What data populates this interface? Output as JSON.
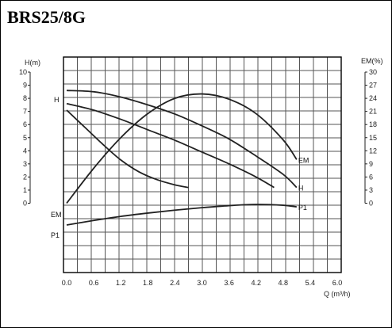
{
  "page": {
    "title": "BRS25/8G"
  },
  "chart_data": {
    "type": "line",
    "xlabel": "Q (m³/h)",
    "x_ticks": [
      "0.0",
      "0.6",
      "1.2",
      "1.8",
      "2.4",
      "3.0",
      "3.6",
      "4.2",
      "4.8",
      "5.4",
      "6.0"
    ],
    "xlim": [
      0,
      6.0
    ],
    "left_axis": {
      "label": "H(m)",
      "ticks": [
        "0",
        "1",
        "2",
        "3",
        "4",
        "5",
        "6",
        "7",
        "8",
        "9",
        "10"
      ],
      "ylim": [
        0,
        10
      ]
    },
    "right_axis": {
      "label": "EM(%)",
      "ticks": [
        "0",
        "3",
        "6",
        "9",
        "12",
        "15",
        "18",
        "21",
        "24",
        "27",
        "30"
      ],
      "ylim": [
        0,
        30
      ]
    },
    "lower_labels": {
      "em": "EM",
      "p1": "P1"
    },
    "grid": true,
    "series": [
      {
        "name": "H",
        "axis": "left",
        "label_pos": "end",
        "x": [
          0,
          0.6,
          1.2,
          1.8,
          2.4,
          3.0,
          3.6,
          4.2,
          4.8,
          5.1
        ],
        "y": [
          8.6,
          8.5,
          8.1,
          7.5,
          6.8,
          5.9,
          4.9,
          3.6,
          2.2,
          1.2
        ]
      },
      {
        "name": "H",
        "axis": "left",
        "label_pos": "start",
        "x": [
          0,
          0.6,
          1.2,
          1.8,
          2.4,
          3.0,
          3.6,
          4.2,
          4.6
        ],
        "y": [
          7.6,
          7.1,
          6.4,
          5.6,
          4.8,
          3.9,
          3.0,
          2.0,
          1.2
        ]
      },
      {
        "name": "",
        "axis": "left",
        "x": [
          0,
          0.4,
          0.8,
          1.2,
          1.6,
          2.0,
          2.4,
          2.7
        ],
        "y": [
          7.1,
          5.8,
          4.5,
          3.3,
          2.4,
          1.8,
          1.4,
          1.2
        ]
      },
      {
        "name": "EM",
        "axis": "right",
        "label_pos": "end",
        "x": [
          0,
          0.6,
          1.2,
          1.8,
          2.4,
          3.0,
          3.6,
          4.2,
          4.8,
          5.1
        ],
        "y": [
          0,
          8.0,
          15.0,
          20.5,
          24.0,
          25.0,
          23.8,
          20.5,
          14.5,
          10.0
        ]
      },
      {
        "name": "P1",
        "axis": "lower",
        "label_pos": "end",
        "x": [
          0,
          0.6,
          1.2,
          1.8,
          2.4,
          3.0,
          3.6,
          4.2,
          4.8,
          5.1
        ],
        "y": [
          0,
          0.22,
          0.42,
          0.58,
          0.72,
          0.84,
          0.94,
          1.0,
          0.96,
          0.88
        ]
      }
    ]
  }
}
